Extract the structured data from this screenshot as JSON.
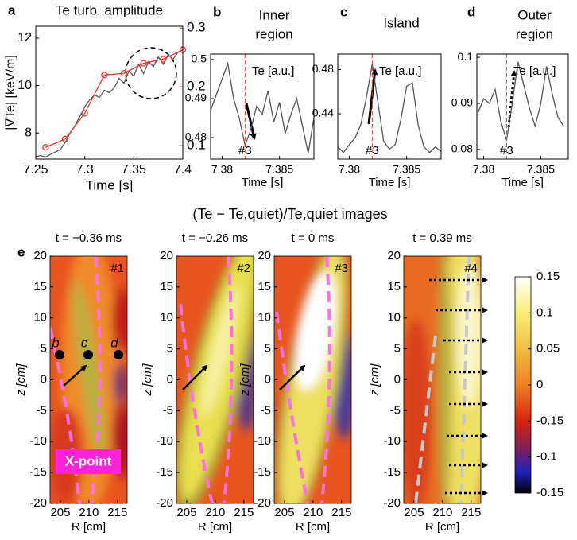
{
  "chart_data": [
    {
      "type": "line",
      "label": "a",
      "title": [
        "Te turb. amplitude"
      ],
      "title_color": "#e8392f",
      "xlabel": "Time [s]",
      "ylabel": "|∇Te| [keV/m]",
      "xlim": [
        7.25,
        7.4
      ],
      "xticks": [
        7.25,
        7.3,
        7.35,
        7.4
      ],
      "ylim": [
        6.9,
        12.5
      ],
      "yticks": [
        8,
        10,
        12
      ],
      "y2lim": [
        0.077,
        0.303
      ],
      "y2ticks": [
        0.1,
        0.2,
        0.3
      ],
      "y2color": "#e8392f",
      "series": [
        {
          "color": "#555555",
          "x": [
            7.25,
            7.255,
            7.26,
            7.265,
            7.27,
            7.275,
            7.28,
            7.285,
            7.29,
            7.295,
            7.3,
            7.305,
            7.31,
            7.315,
            7.32,
            7.325,
            7.33,
            7.335,
            7.34,
            7.345,
            7.35,
            7.355,
            7.36,
            7.365,
            7.37,
            7.375,
            7.38,
            7.385,
            7.39,
            7.395,
            7.4
          ],
          "values": [
            7.0,
            7.05,
            6.98,
            7.1,
            7.2,
            7.3,
            7.6,
            8.0,
            8.3,
            8.7,
            9.1,
            9.4,
            9.6,
            9.5,
            9.8,
            9.7,
            9.9,
            10.3,
            10.1,
            10.6,
            10.4,
            10.9,
            10.5,
            11.0,
            10.8,
            11.2,
            10.9,
            11.3,
            11.1,
            11.4,
            11.5
          ]
        },
        {
          "color": "#e8392f",
          "axis": "y2",
          "markers": true,
          "x": [
            7.26,
            7.28,
            7.3,
            7.32,
            7.34,
            7.36,
            7.38,
            7.4
          ],
          "values": [
            0.097,
            0.111,
            0.155,
            0.22,
            0.223,
            0.24,
            0.247,
            0.263
          ]
        }
      ]
    },
    {
      "type": "line",
      "label": "b",
      "title": [
        "Inner",
        "region"
      ],
      "xlabel": "Time [s]",
      "annotation": "Te [a.u.]",
      "marker_label": "#3",
      "marker_x": 7.382,
      "xlim": [
        7.379,
        7.388
      ],
      "xticks": [
        7.38,
        7.385
      ],
      "ylim": [
        0.4745,
        0.5014
      ],
      "yticks": [
        0.48,
        0.49,
        0.5
      ],
      "series": [
        {
          "color": "#555555",
          "x": [
            7.379,
            7.3795,
            7.38,
            7.3805,
            7.381,
            7.3815,
            7.382,
            7.3825,
            7.383,
            7.3835,
            7.384,
            7.3845,
            7.385,
            7.3855,
            7.386,
            7.3865,
            7.387,
            7.3875,
            7.388
          ],
          "values": [
            0.487,
            0.491,
            0.495,
            0.499,
            0.49,
            0.485,
            0.478,
            0.482,
            0.488,
            0.486,
            0.492,
            0.484,
            0.489,
            0.481,
            0.486,
            0.49,
            0.483,
            0.476,
            0.485
          ]
        }
      ]
    },
    {
      "type": "line",
      "label": "c",
      "title": [
        "Island"
      ],
      "xlabel": "Time [s]",
      "annotation": "Te [a.u.]",
      "marker_label": "#3",
      "marker_x": 7.382,
      "xlim": [
        7.379,
        7.388
      ],
      "xticks": [
        7.38,
        7.385
      ],
      "ylim": [
        0.399,
        0.494
      ],
      "yticks": [
        0.44,
        0.48
      ],
      "series": [
        {
          "color": "#555555",
          "x": [
            7.379,
            7.3795,
            7.38,
            7.3805,
            7.381,
            7.3815,
            7.382,
            7.3825,
            7.383,
            7.3835,
            7.384,
            7.3845,
            7.385,
            7.3855,
            7.386,
            7.3865,
            7.387,
            7.3875,
            7.388
          ],
          "values": [
            0.41,
            0.405,
            0.412,
            0.418,
            0.43,
            0.455,
            0.485,
            0.45,
            0.415,
            0.408,
            0.412,
            0.435,
            0.465,
            0.468,
            0.43,
            0.41,
            0.405,
            0.41,
            0.406
          ]
        }
      ]
    },
    {
      "type": "line",
      "label": "d",
      "title": [
        "Outer",
        "region"
      ],
      "xlabel": "Time [s]",
      "annotation": "Te [a.u.]",
      "marker_label": "#3",
      "marker_x": 7.382,
      "xlim": [
        7.3794,
        7.3874
      ],
      "xticks": [
        7.38,
        7.385
      ],
      "ylim": [
        0.0779,
        0.1007
      ],
      "yticks": [
        0.08,
        0.09,
        0.1
      ],
      "series": [
        {
          "color": "#555555",
          "x": [
            7.3795,
            7.38,
            7.3805,
            7.381,
            7.3815,
            7.382,
            7.3825,
            7.383,
            7.3835,
            7.384,
            7.3845,
            7.385,
            7.3855,
            7.386,
            7.3865,
            7.387
          ],
          "values": [
            0.088,
            0.091,
            0.09,
            0.093,
            0.086,
            0.082,
            0.09,
            0.099,
            0.094,
            0.089,
            0.085,
            0.09,
            0.098,
            0.092,
            0.087,
            0.085
          ]
        }
      ]
    },
    {
      "type": "image",
      "label": "e",
      "title": "(Te − Te,quiet)/Te,quiet images",
      "xlabel": "R [cm]",
      "ylabel": "z [cm]",
      "xlim": [
        203.2,
        216.7
      ],
      "xticks": [
        205,
        210,
        215
      ],
      "ylim": [
        -20,
        20
      ],
      "yticks": [
        20,
        15,
        10,
        5,
        0,
        -5,
        -10,
        -15,
        -20
      ],
      "frames": [
        {
          "title": "t = −0.36 ms",
          "tag": "#1"
        },
        {
          "title": "t = −0.26 ms",
          "tag": "#2"
        },
        {
          "title": "t = 0 ms",
          "tag": "#3"
        },
        {
          "title": "t = 0.39 ms",
          "tag": "#4"
        }
      ],
      "points": [
        "b",
        "c",
        "d"
      ],
      "xpoint_label": "X-point",
      "colorbar_labels": [
        "0.15",
        "0.1",
        "0.05",
        "0",
        "-0.15",
        "-0.1",
        "-0.15"
      ]
    }
  ]
}
